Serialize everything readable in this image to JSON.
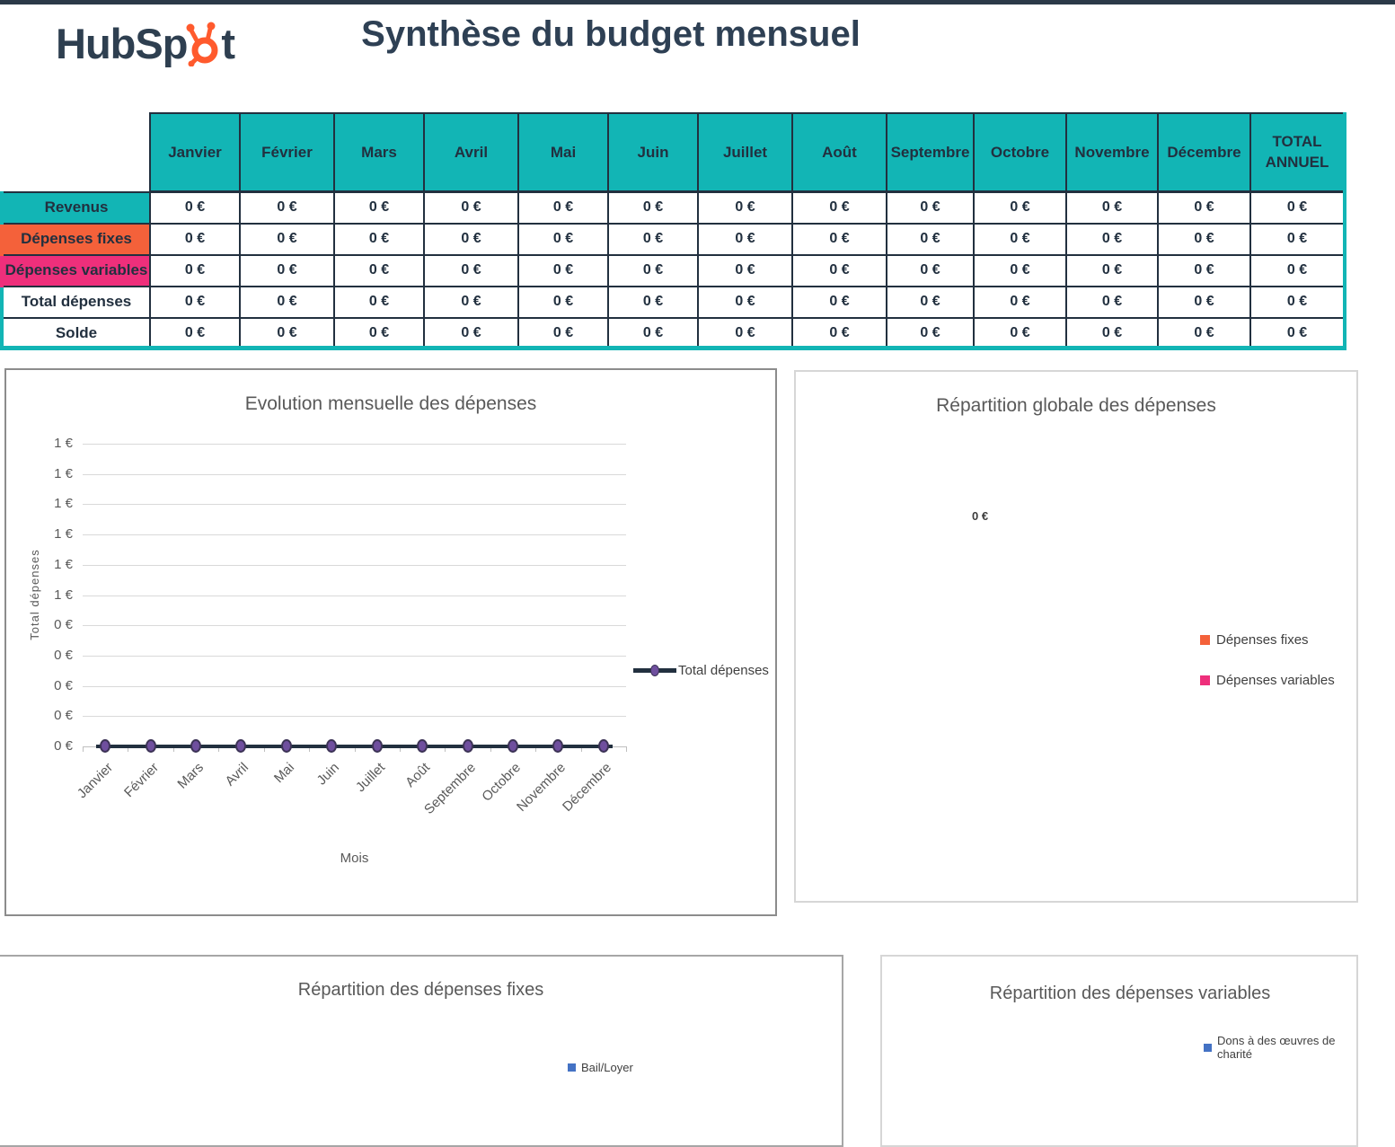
{
  "header": {
    "logo_text_before": "HubSp",
    "logo_text_after": "t",
    "title": "Synthèse du budget mensuel"
  },
  "colors": {
    "teal": "#12b5b5",
    "navy": "#22303f",
    "orange": "#f4613a",
    "pink": "#ee2f7b",
    "line": "#22303f",
    "marker_purple": "#6f4f9e",
    "legend_blue": "#4472c4",
    "hubspot_orange": "#ff5a2d"
  },
  "budget_table": {
    "months": [
      "Janvier",
      "Février",
      "Mars",
      "Avril",
      "Mai",
      "Juin",
      "Juillet",
      "Août",
      "Septembre",
      "Octobre",
      "Novembre",
      "Décembre"
    ],
    "total_column_line1": "TOTAL",
    "total_column_line2": "ANNUEL",
    "rows": [
      {
        "label": "Revenus",
        "label_bg": "#12b5b5",
        "values": [
          "0 €",
          "0 €",
          "0 €",
          "0 €",
          "0 €",
          "0 €",
          "0 €",
          "0 €",
          "0 €",
          "0 €",
          "0 €",
          "0 €",
          "0 €"
        ]
      },
      {
        "label": "Dépenses fixes",
        "label_bg": "#f4613a",
        "values": [
          "0 €",
          "0 €",
          "0 €",
          "0 €",
          "0 €",
          "0 €",
          "0 €",
          "0 €",
          "0 €",
          "0 €",
          "0 €",
          "0 €",
          "0 €"
        ]
      },
      {
        "label": "Dépenses variables",
        "label_bg": "#ee2f7b",
        "values": [
          "0 €",
          "0 €",
          "0 €",
          "0 €",
          "0 €",
          "0 €",
          "0 €",
          "0 €",
          "0 €",
          "0 €",
          "0 €",
          "0 €",
          "0 €"
        ]
      },
      {
        "label": "Total dépenses",
        "label_bg": "#ffffff",
        "values": [
          "0 €",
          "0 €",
          "0 €",
          "0 €",
          "0 €",
          "0 €",
          "0 €",
          "0 €",
          "0 €",
          "0 €",
          "0 €",
          "0 €",
          "0 €"
        ]
      },
      {
        "label": "Solde",
        "label_bg": "#ffffff",
        "values": [
          "0 €",
          "0 €",
          "0 €",
          "0 €",
          "0 €",
          "0 €",
          "0 €",
          "0 €",
          "0 €",
          "0 €",
          "0 €",
          "0 €",
          "0 €"
        ]
      }
    ]
  },
  "evolution_chart": {
    "title": "Evolution mensuelle des dépenses",
    "y_axis_title": "Total dépenses",
    "x_axis_title": "Mois",
    "legend": "Total dépenses",
    "y_tick_labels": [
      "1 €",
      "1 €",
      "1 €",
      "1 €",
      "1 €",
      "1 €",
      "0 €",
      "0 €",
      "0 €",
      "0 €",
      "0 €"
    ]
  },
  "global_pie": {
    "title": "Répartition globale des dépenses",
    "data_label": "0 €",
    "legend": [
      {
        "label": "Dépenses fixes",
        "color": "#f4613a"
      },
      {
        "label": "Dépenses variables",
        "color": "#ee2f7b"
      }
    ]
  },
  "fixed_pie": {
    "title": "Répartition des dépenses fixes",
    "legend": [
      {
        "label": "Bail/Loyer",
        "color": "#4472c4"
      }
    ]
  },
  "variable_pie": {
    "title": "Répartition des dépenses variables",
    "legend": [
      {
        "label": "Dons à des œuvres de charité",
        "color": "#4472c4"
      }
    ]
  },
  "chart_data": [
    {
      "type": "line",
      "title": "Evolution mensuelle des dépenses",
      "xlabel": "Mois",
      "ylabel": "Total dépenses",
      "categories": [
        "Janvier",
        "Février",
        "Mars",
        "Avril",
        "Mai",
        "Juin",
        "Juillet",
        "Août",
        "Septembre",
        "Octobre",
        "Novembre",
        "Décembre"
      ],
      "series": [
        {
          "name": "Total dépenses",
          "values": [
            0,
            0,
            0,
            0,
            0,
            0,
            0,
            0,
            0,
            0,
            0,
            0
          ]
        }
      ],
      "ylim": [
        0,
        1
      ],
      "y_tick_format": "0 €",
      "grid": true,
      "legend_position": "right"
    },
    {
      "type": "pie",
      "title": "Répartition globale des dépenses",
      "categories": [
        "Dépenses fixes",
        "Dépenses variables"
      ],
      "values": [
        0,
        0
      ],
      "data_labels": [
        "0 €"
      ],
      "legend_position": "right"
    },
    {
      "type": "pie",
      "title": "Répartition des dépenses fixes",
      "categories": [
        "Bail/Loyer"
      ],
      "values": [
        0
      ],
      "legend_position": "right"
    },
    {
      "type": "pie",
      "title": "Répartition des dépenses variables",
      "categories": [
        "Dons à des œuvres de charité"
      ],
      "values": [
        0
      ],
      "legend_position": "right"
    }
  ]
}
